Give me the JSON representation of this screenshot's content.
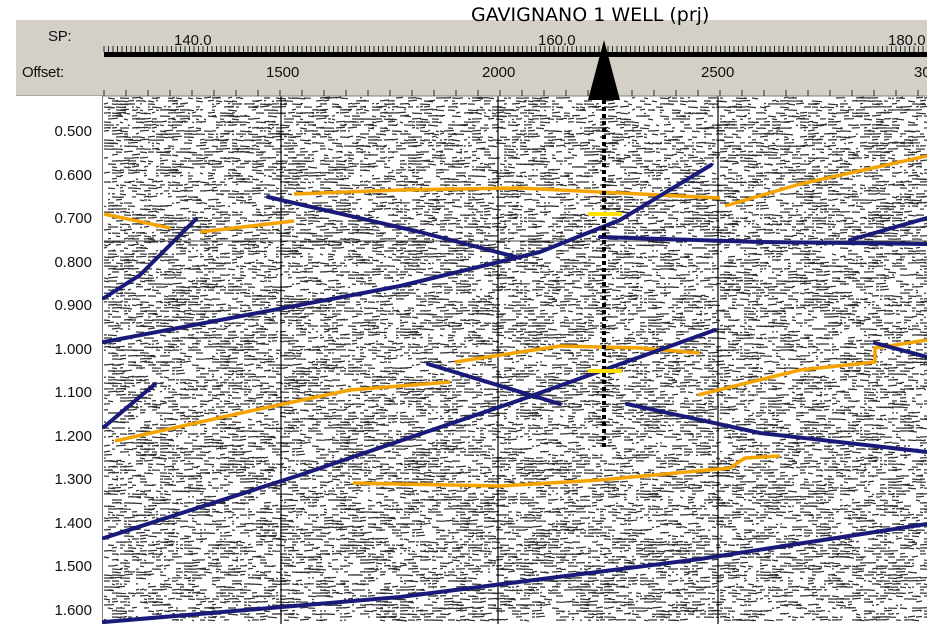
{
  "well_label": "GAVIGNANO 1 WELL (prj)",
  "header": {
    "sp_label": "SP:",
    "offset_label": "Offset:",
    "sp_ticks": [
      "140.0",
      "160.0",
      "180.0"
    ],
    "offset_ticks": [
      "1500",
      "2000",
      "2500",
      "30"
    ]
  },
  "time_axis": {
    "ticks": [
      "0.500",
      "0.600",
      "0.700",
      "0.800",
      "0.900",
      "1.000",
      "1.100",
      "1.200",
      "1.300",
      "1.400",
      "1.500",
      "1.600"
    ]
  },
  "colors": {
    "fault": "#1a1a7a",
    "horizon": "#f5a300",
    "well_marker": "#ffe000",
    "header_bg": "#d4d0c8",
    "noise": "#000000"
  }
}
